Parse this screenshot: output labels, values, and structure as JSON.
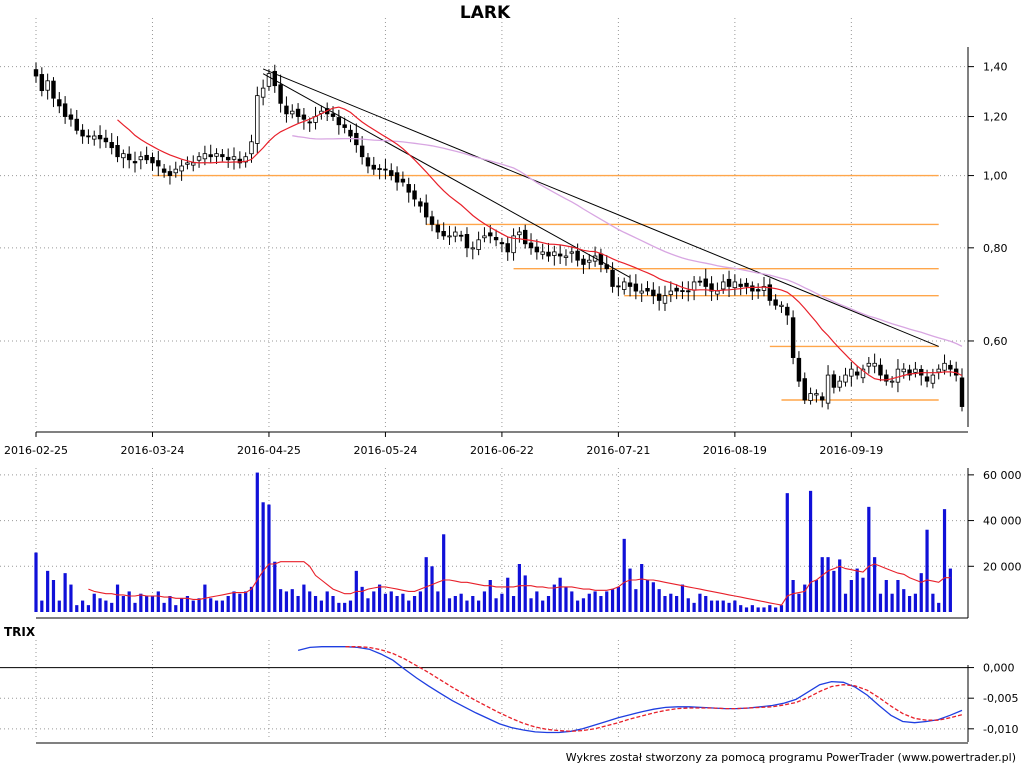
{
  "title": "LARK",
  "footer": "Wykres został stworzony za pomocą programu PowerTrader (www.powertrader.pl)",
  "colors": {
    "candle": "#000000",
    "ma_short": "#e8202a",
    "ma_long": "#d8a6e2",
    "support": "#ffa64a",
    "volume": "#1010d8",
    "trix": "#1e3ee0",
    "trix_signal": "#e8202a"
  },
  "chart_data": [
    {
      "type": "candlestick",
      "name": "price",
      "title": "LARK",
      "x_tick_labels": [
        "2016-02-25",
        "2016-03-24",
        "2016-04-25",
        "2016-05-24",
        "2016-06-22",
        "2016-07-21",
        "2016-08-19",
        "2016-09-19"
      ],
      "x_tick_index": [
        0,
        20,
        40,
        60,
        80,
        100,
        120,
        140
      ],
      "y_ticks": [
        1.4,
        1.2,
        1.0,
        0.8,
        0.6
      ],
      "y_tick_labels": [
        "1,40",
        "1,20",
        "1,00",
        "0,80",
        "0,60"
      ],
      "y_scale": "log",
      "ylim": [
        0.46,
        1.52
      ],
      "grid": true,
      "close": [
        1.36,
        1.3,
        1.34,
        1.27,
        1.24,
        1.2,
        1.19,
        1.15,
        1.13,
        1.13,
        1.13,
        1.12,
        1.11,
        1.09,
        1.06,
        1.07,
        1.05,
        1.04,
        1.06,
        1.05,
        1.04,
        1.03,
        1.01,
        1.0,
        1.02,
        1.03,
        1.04,
        1.04,
        1.06,
        1.07,
        1.06,
        1.07,
        1.06,
        1.05,
        1.06,
        1.04,
        1.06,
        1.11,
        1.28,
        1.31,
        1.37,
        1.32,
        1.25,
        1.21,
        1.22,
        1.2,
        1.19,
        1.18,
        1.2,
        1.22,
        1.21,
        1.2,
        1.17,
        1.16,
        1.13,
        1.1,
        1.06,
        1.03,
        1.02,
        1.02,
        1.02,
        1.0,
        0.98,
        0.98,
        0.95,
        0.93,
        0.91,
        0.88,
        0.86,
        0.84,
        0.83,
        0.83,
        0.84,
        0.83,
        0.8,
        0.8,
        0.82,
        0.83,
        0.83,
        0.82,
        0.81,
        0.79,
        0.83,
        0.84,
        0.81,
        0.8,
        0.79,
        0.79,
        0.78,
        0.79,
        0.78,
        0.78,
        0.79,
        0.77,
        0.76,
        0.77,
        0.78,
        0.76,
        0.75,
        0.71,
        0.71,
        0.72,
        0.71,
        0.7,
        0.7,
        0.7,
        0.69,
        0.68,
        0.69,
        0.7,
        0.7,
        0.7,
        0.7,
        0.72,
        0.72,
        0.71,
        0.7,
        0.7,
        0.72,
        0.71,
        0.72,
        0.71,
        0.71,
        0.7,
        0.7,
        0.71,
        0.68,
        0.67,
        0.67,
        0.65,
        0.57,
        0.53,
        0.5,
        0.51,
        0.51,
        0.5,
        0.54,
        0.52,
        0.53,
        0.54,
        0.55,
        0.54,
        0.55,
        0.56,
        0.56,
        0.54,
        0.53,
        0.53,
        0.55,
        0.55,
        0.54,
        0.55,
        0.54,
        0.53,
        0.54,
        0.55,
        0.56,
        0.55,
        0.54,
        0.49
      ],
      "support_lines": [
        1.0,
        0.86,
        0.75,
        0.69,
        0.59,
        0.5
      ],
      "trendlines": [
        {
          "from_index": 39,
          "from_value": 1.39,
          "to_index": 155,
          "to_value": 0.59
        },
        {
          "from_index": 39,
          "from_value": 1.37,
          "to_index": 102,
          "to_value": 0.73
        }
      ]
    },
    {
      "type": "bar",
      "name": "volume",
      "y_ticks": [
        20000,
        40000,
        60000
      ],
      "y_tick_labels": [
        "20 000",
        "40 000",
        "60 000"
      ],
      "ylim": [
        0,
        63000
      ],
      "grid": true,
      "values": [
        26000,
        5000,
        18000,
        14000,
        5000,
        17000,
        12000,
        3000,
        5000,
        3000,
        8000,
        6000,
        5000,
        4000,
        12000,
        7000,
        9000,
        4000,
        8000,
        7000,
        7000,
        9000,
        4000,
        7000,
        3000,
        6000,
        7000,
        5000,
        6000,
        12000,
        6000,
        5000,
        5000,
        7000,
        9000,
        8000,
        9000,
        11000,
        61000,
        48000,
        47000,
        22000,
        10000,
        9000,
        10000,
        7000,
        12000,
        9000,
        7000,
        5000,
        9000,
        7000,
        4000,
        4000,
        5000,
        18000,
        11000,
        6000,
        9000,
        12000,
        8000,
        9000,
        7000,
        8000,
        5000,
        7000,
        9000,
        24000,
        20000,
        9000,
        34000,
        6000,
        7000,
        8000,
        5000,
        7000,
        5000,
        9000,
        14000,
        6000,
        8000,
        15000,
        7000,
        21000,
        16000,
        6000,
        9000,
        5000,
        7000,
        12000,
        15000,
        11000,
        9000,
        5000,
        6000,
        8000,
        9000,
        7000,
        9000,
        10000,
        11000,
        32000,
        19000,
        10000,
        21000,
        14000,
        13000,
        10000,
        7000,
        8000,
        7000,
        12000,
        6000,
        4000,
        8000,
        7000,
        5000,
        5000,
        5000,
        4000,
        5000,
        3000,
        2000,
        3000,
        2000,
        2000,
        3000,
        2000,
        3000,
        52000,
        14000,
        8000,
        12000,
        53000,
        14000,
        24000,
        24000,
        18000,
        23000,
        8000,
        14000,
        19000,
        15000,
        46000,
        24000,
        8000,
        14000,
        8000,
        14000,
        10000,
        7000,
        8000,
        17000,
        36000,
        8000,
        4000,
        45000,
        19000
      ],
      "ma": [
        0,
        0,
        0,
        0,
        0,
        0,
        0,
        0,
        0,
        10000,
        9000,
        8500,
        8000,
        8000,
        7500,
        7500,
        7000,
        7000,
        7500,
        7000,
        7000,
        7000,
        6500,
        6500,
        6000,
        6000,
        6000,
        5500,
        5500,
        6000,
        6500,
        7000,
        7500,
        8000,
        8500,
        8500,
        8500,
        10000,
        14000,
        18000,
        21000,
        21000,
        22000,
        22000,
        22000,
        22000,
        22000,
        20000,
        16000,
        14000,
        12000,
        10000,
        9000,
        8000,
        8000,
        9000,
        9000,
        10000,
        10500,
        11000,
        11000,
        10500,
        10000,
        9500,
        9000,
        9000,
        10000,
        11000,
        12000,
        13000,
        14000,
        14000,
        13500,
        13000,
        13000,
        12500,
        12000,
        11500,
        11500,
        11000,
        11000,
        11000,
        11000,
        11500,
        11500,
        11500,
        11000,
        11000,
        10500,
        10500,
        11000,
        11000,
        11000,
        10500,
        10000,
        10000,
        9500,
        9500,
        9500,
        10000,
        11000,
        13000,
        14000,
        14000,
        14500,
        14000,
        14000,
        13500,
        13000,
        12500,
        12000,
        11500,
        11000,
        10500,
        10000,
        9500,
        9000,
        8500,
        8000,
        7500,
        7000,
        6500,
        6000,
        5500,
        5000,
        4500,
        4000,
        3500,
        3000,
        7000,
        8000,
        8500,
        9000,
        13000,
        14000,
        16000,
        18000,
        19000,
        20000,
        19000,
        18500,
        18000,
        17500,
        20000,
        21000,
        20000,
        19000,
        18000,
        17000,
        16500,
        15000,
        14000,
        13000,
        14000,
        13500,
        13000,
        15000,
        15000
      ]
    },
    {
      "type": "line",
      "name": "TRIX",
      "title": "TRIX",
      "y_ticks": [
        0.0,
        -0.005,
        -0.01
      ],
      "y_tick_labels": [
        "0,000",
        "-0,005",
        "-0,010"
      ],
      "ylim": [
        -0.0115,
        0.0045
      ],
      "grid": true,
      "x_start_index": 45,
      "series": [
        {
          "name": "TRIX",
          "style": "solid",
          "values": [
            0.0028,
            0.0033,
            0.0034,
            0.0034,
            0.0034,
            0.0033,
            0.003,
            0.0022,
            0.0012,
            -0.0003,
            -0.0017,
            -0.003,
            -0.0042,
            -0.0054,
            -0.0064,
            -0.0074,
            -0.0083,
            -0.0092,
            -0.0098,
            -0.0102,
            -0.0105,
            -0.0106,
            -0.0106,
            -0.0104,
            -0.01,
            -0.0094,
            -0.0088,
            -0.0082,
            -0.0077,
            -0.0072,
            -0.0068,
            -0.0065,
            -0.0064,
            -0.0064,
            -0.0065,
            -0.0066,
            -0.0067,
            -0.0067,
            -0.0066,
            -0.0064,
            -0.0062,
            -0.0058,
            -0.0052,
            -0.004,
            -0.0028,
            -0.0023,
            -0.0024,
            -0.0032,
            -0.0045,
            -0.0062,
            -0.0078,
            -0.0088,
            -0.009,
            -0.0088,
            -0.0085,
            -0.0078,
            -0.007
          ]
        },
        {
          "name": "signal",
          "style": "dashed",
          "values": [
            null,
            null,
            null,
            null,
            0.0034,
            0.0034,
            0.0033,
            0.0029,
            0.0023,
            0.0014,
            0.0003,
            -0.0008,
            -0.002,
            -0.0032,
            -0.0043,
            -0.0054,
            -0.0064,
            -0.0074,
            -0.0083,
            -0.0091,
            -0.0097,
            -0.0101,
            -0.0103,
            -0.0104,
            -0.0103,
            -0.01,
            -0.0095,
            -0.009,
            -0.0084,
            -0.0079,
            -0.0074,
            -0.007,
            -0.0067,
            -0.0066,
            -0.0066,
            -0.0066,
            -0.0067,
            -0.0067,
            -0.0066,
            -0.0065,
            -0.0064,
            -0.0061,
            -0.0057,
            -0.0049,
            -0.0039,
            -0.0031,
            -0.0028,
            -0.003,
            -0.0037,
            -0.0049,
            -0.0063,
            -0.0075,
            -0.0083,
            -0.0086,
            -0.0086,
            -0.0082,
            -0.0077
          ]
        }
      ]
    }
  ]
}
